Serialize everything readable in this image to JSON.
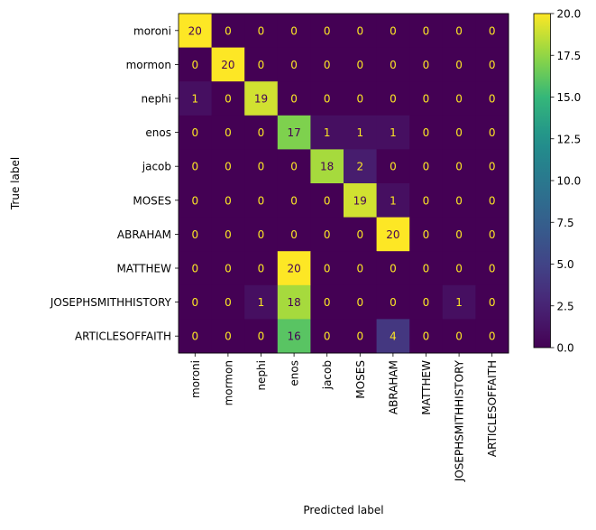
{
  "chart_data": {
    "type": "heatmap",
    "xlabel": "Predicted label",
    "ylabel": "True label",
    "x_categories": [
      "moroni",
      "mormon",
      "nephi",
      "enos",
      "jacob",
      "MOSES",
      "ABRAHAM",
      "MATTHEW",
      "JOSEPHSMITHHISTORY",
      "ARTICLESOFFAITH"
    ],
    "y_categories": [
      "moroni",
      "mormon",
      "nephi",
      "enos",
      "jacob",
      "MOSES",
      "ABRAHAM",
      "MATTHEW",
      "JOSEPHSMITHHISTORY",
      "ARTICLESOFFAITH"
    ],
    "matrix": [
      [
        20,
        0,
        0,
        0,
        0,
        0,
        0,
        0,
        0,
        0
      ],
      [
        0,
        20,
        0,
        0,
        0,
        0,
        0,
        0,
        0,
        0
      ],
      [
        1,
        0,
        19,
        0,
        0,
        0,
        0,
        0,
        0,
        0
      ],
      [
        0,
        0,
        0,
        17,
        1,
        1,
        1,
        0,
        0,
        0
      ],
      [
        0,
        0,
        0,
        0,
        18,
        2,
        0,
        0,
        0,
        0
      ],
      [
        0,
        0,
        0,
        0,
        0,
        19,
        1,
        0,
        0,
        0
      ],
      [
        0,
        0,
        0,
        0,
        0,
        0,
        20,
        0,
        0,
        0
      ],
      [
        0,
        0,
        0,
        20,
        0,
        0,
        0,
        0,
        0,
        0
      ],
      [
        0,
        0,
        1,
        18,
        0,
        0,
        0,
        0,
        1,
        0
      ],
      [
        0,
        0,
        0,
        16,
        0,
        0,
        4,
        0,
        0,
        0
      ]
    ],
    "colormap": "viridis",
    "vmin": 0,
    "vmax": 20,
    "colorbar_ticks": [
      "0.0",
      "2.5",
      "5.0",
      "7.5",
      "10.0",
      "12.5",
      "15.0",
      "17.5",
      "20.0"
    ],
    "grid": false,
    "text_color_light": "#fde725",
    "text_color_dark": "#440154"
  }
}
